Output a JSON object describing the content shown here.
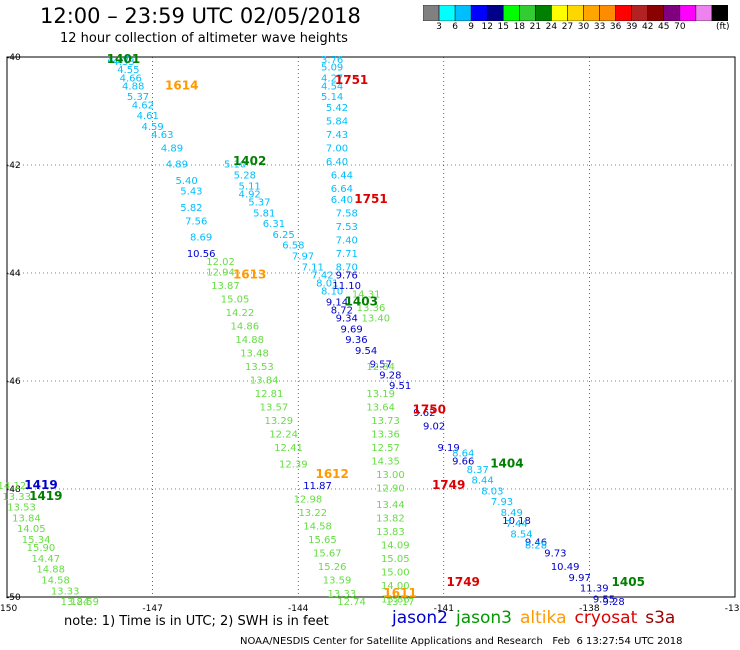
{
  "title": "12:00 – 23:59 UTC 02/05/2018",
  "subtitle": "12 hour collection of altimeter wave heights",
  "color_scale": {
    "colors": [
      "#808080",
      "#00ffff",
      "#00bfff",
      "#0000ff",
      "#00008b",
      "#00ff00",
      "#32cd32",
      "#008000",
      "#ffff00",
      "#ffd700",
      "#ffa500",
      "#ff8c00",
      "#ff0000",
      "#b22222",
      "#8b0000",
      "#800080",
      "#ff00ff",
      "#ee82ee",
      "#000000"
    ],
    "labels": [
      "3",
      "6",
      "9",
      "12",
      "15",
      "18",
      "21",
      "24",
      "27",
      "30",
      "33",
      "36",
      "39",
      "42",
      "45",
      "70"
    ],
    "unit": "(ft)"
  },
  "note": "note: 1) Time is in UTC; 2) SWH is in feet",
  "legend": [
    {
      "name": "jason2",
      "color": "#0000cc"
    },
    {
      "name": "jason3",
      "color": "#009900"
    },
    {
      "name": "altika",
      "color": "#ff9900"
    },
    {
      "name": "cryosat",
      "color": "#dd0000"
    },
    {
      "name": "s3a",
      "color": "#990000"
    }
  ],
  "credit": "NOAA/NESDIS Center for Satellite Applications and Research   Feb  6 13:27:54 UTC 2018",
  "chart_data": {
    "type": "scatter",
    "xlim": [
      -150,
      -135
    ],
    "ylim": [
      -50,
      -40
    ],
    "x_ticks": [
      "-150",
      "-147",
      "-144",
      "-141",
      "-138",
      "-135"
    ],
    "y_ticks": [
      "-40",
      "-42",
      "-44",
      "-46",
      "-48",
      "-50"
    ],
    "grid": true,
    "track_labels": [
      {
        "text": "1401",
        "x": -147.6,
        "y": -40.0,
        "color": "#008000"
      },
      {
        "text": "1614",
        "x": -146.4,
        "y": -40.6,
        "color": "#ff9900"
      },
      {
        "text": "1751",
        "x": -142.9,
        "y": -40.5,
        "color": "#dd0000"
      },
      {
        "text": "1402",
        "x": -145.0,
        "y": -42.0,
        "color": "#008000"
      },
      {
        "text": "1751",
        "x": -142.5,
        "y": -42.7,
        "color": "#dd0000"
      },
      {
        "text": "1613",
        "x": -145.0,
        "y": -44.1,
        "color": "#ff9900"
      },
      {
        "text": "1403",
        "x": -142.7,
        "y": -44.6,
        "color": "#008000"
      },
      {
        "text": "1750",
        "x": -141.3,
        "y": -46.6,
        "color": "#dd0000"
      },
      {
        "text": "1404",
        "x": -139.7,
        "y": -47.6,
        "color": "#008000"
      },
      {
        "text": "1612",
        "x": -143.3,
        "y": -47.8,
        "color": "#ff9900"
      },
      {
        "text": "1749",
        "x": -140.9,
        "y": -48.0,
        "color": "#dd0000"
      },
      {
        "text": "1419",
        "x": -149.3,
        "y": -48.0,
        "color": "#0000cc"
      },
      {
        "text": "1419",
        "x": -149.2,
        "y": -48.2,
        "color": "#008000"
      },
      {
        "text": "1405",
        "x": -137.2,
        "y": -49.8,
        "color": "#008000"
      },
      {
        "text": "1749",
        "x": -140.6,
        "y": -49.8,
        "color": "#dd0000"
      },
      {
        "text": "1611",
        "x": -141.9,
        "y": -50.0,
        "color": "#ff9900"
      }
    ],
    "series": [
      {
        "name": "jason3 1401-1402",
        "color": "#00bfff",
        "points": [
          {
            "x": -147.7,
            "y": -40.05,
            "v": "4.27"
          },
          {
            "x": -147.6,
            "y": -40.15,
            "v": "4.33"
          },
          {
            "x": -147.5,
            "y": -40.3,
            "v": "4.55"
          },
          {
            "x": -147.45,
            "y": -40.45,
            "v": "4.66"
          },
          {
            "x": -147.4,
            "y": -40.6,
            "v": "4.88"
          },
          {
            "x": -147.3,
            "y": -40.8,
            "v": "5.37"
          },
          {
            "x": -147.2,
            "y": -40.95,
            "v": "4.62"
          },
          {
            "x": -147.1,
            "y": -41.15,
            "v": "4.61"
          },
          {
            "x": -147.0,
            "y": -41.35,
            "v": "4.59"
          },
          {
            "x": -146.8,
            "y": -41.5,
            "v": "4.63"
          },
          {
            "x": -146.6,
            "y": -41.75,
            "v": "4.89"
          },
          {
            "x": -146.5,
            "y": -42.05,
            "v": "4.89"
          },
          {
            "x": -146.3,
            "y": -42.35,
            "v": "5.40"
          },
          {
            "x": -146.2,
            "y": -42.55,
            "v": "5.43"
          },
          {
            "x": -146.2,
            "y": -42.85,
            "v": "5.82"
          },
          {
            "x": -146.1,
            "y": -43.1,
            "v": "7.56"
          },
          {
            "x": -146.0,
            "y": -43.4,
            "v": "8.69"
          }
        ]
      },
      {
        "name": "jason3 1402-1403",
        "color": "#00bfff",
        "points": [
          {
            "x": -145.3,
            "y": -42.05,
            "v": "5.10"
          },
          {
            "x": -145.1,
            "y": -42.25,
            "v": "5.28"
          },
          {
            "x": -145.0,
            "y": -42.45,
            "v": "5.11"
          },
          {
            "x": -145.0,
            "y": -42.6,
            "v": "4.92"
          },
          {
            "x": -144.8,
            "y": -42.75,
            "v": "5.37"
          },
          {
            "x": -144.7,
            "y": -42.95,
            "v": "5.81"
          },
          {
            "x": -144.5,
            "y": -43.15,
            "v": "6.31"
          },
          {
            "x": -144.3,
            "y": -43.35,
            "v": "6.25"
          },
          {
            "x": -144.1,
            "y": -43.55,
            "v": "6.58"
          },
          {
            "x": -143.9,
            "y": -43.75,
            "v": "7.97"
          },
          {
            "x": -143.7,
            "y": -43.95,
            "v": "7.11"
          },
          {
            "x": -143.5,
            "y": -44.1,
            "v": "7.42"
          },
          {
            "x": -143.4,
            "y": -44.25,
            "v": "8.01"
          },
          {
            "x": -143.3,
            "y": -44.4,
            "v": "8.10"
          }
        ]
      },
      {
        "name": "cryosat 1751",
        "color": "#00bfff",
        "points": [
          {
            "x": -143.3,
            "y": -40.05,
            "v": "3.76"
          },
          {
            "x": -143.3,
            "y": -40.25,
            "v": "5.09"
          },
          {
            "x": -143.3,
            "y": -40.45,
            "v": "4.27"
          },
          {
            "x": -143.3,
            "y": -40.6,
            "v": "4.54"
          },
          {
            "x": -143.3,
            "y": -40.8,
            "v": "5.14"
          },
          {
            "x": -143.2,
            "y": -41.0,
            "v": "5.42"
          },
          {
            "x": -143.2,
            "y": -41.25,
            "v": "5.84"
          },
          {
            "x": -143.2,
            "y": -41.5,
            "v": "7.43"
          },
          {
            "x": -143.2,
            "y": -41.75,
            "v": "7.00"
          },
          {
            "x": -143.2,
            "y": -42.0,
            "v": "6.40"
          },
          {
            "x": -143.1,
            "y": -42.25,
            "v": "6.44"
          },
          {
            "x": -143.1,
            "y": -42.5,
            "v": "6.64"
          },
          {
            "x": -143.1,
            "y": -42.7,
            "v": "6.40"
          },
          {
            "x": -143.0,
            "y": -42.95,
            "v": "7.58"
          },
          {
            "x": -143.0,
            "y": -43.2,
            "v": "7.53"
          },
          {
            "x": -143.0,
            "y": -43.45,
            "v": "7.40"
          },
          {
            "x": -143.0,
            "y": -43.7,
            "v": "7.71"
          },
          {
            "x": -143.0,
            "y": -43.95,
            "v": "8.70"
          }
        ]
      },
      {
        "name": "jason2 1403-1405",
        "color": "#0000cc",
        "points": [
          {
            "x": -143.0,
            "y": -44.1,
            "v": "9.76"
          },
          {
            "x": -143.0,
            "y": -44.3,
            "v": "11.10"
          },
          {
            "x": -143.2,
            "y": -44.6,
            "v": "9.14"
          },
          {
            "x": -143.0,
            "y": -44.9,
            "v": "9.34"
          },
          {
            "x": -142.9,
            "y": -45.1,
            "v": "9.69"
          },
          {
            "x": -142.8,
            "y": -45.3,
            "v": "9.36"
          },
          {
            "x": -142.6,
            "y": -45.5,
            "v": "9.54"
          },
          {
            "x": -142.3,
            "y": -45.75,
            "v": "9.57"
          },
          {
            "x": -142.1,
            "y": -45.95,
            "v": "9.28"
          },
          {
            "x": -141.9,
            "y": -46.15,
            "v": "9.51"
          },
          {
            "x": -141.4,
            "y": -46.65,
            "v": "9.62"
          },
          {
            "x": -141.2,
            "y": -46.9,
            "v": "9.02"
          },
          {
            "x": -140.9,
            "y": -47.3,
            "v": "9.19"
          },
          {
            "x": -140.6,
            "y": -47.55,
            "v": "9.66"
          },
          {
            "x": -139.5,
            "y": -48.65,
            "v": "10.18"
          },
          {
            "x": -139.1,
            "y": -49.05,
            "v": "9.46"
          },
          {
            "x": -138.7,
            "y": -49.25,
            "v": "9.73"
          },
          {
            "x": -138.5,
            "y": -49.5,
            "v": "10.49"
          },
          {
            "x": -138.2,
            "y": -49.7,
            "v": "9.97"
          },
          {
            "x": -137.9,
            "y": -49.9,
            "v": "11.39"
          },
          {
            "x": -137.7,
            "y": -50.1,
            "v": "9.55"
          },
          {
            "x": -137.5,
            "y": -50.25,
            "v": "9.28"
          },
          {
            "x": -146.0,
            "y": -43.7,
            "v": "10.56"
          },
          {
            "x": -143.6,
            "y": -48.0,
            "v": "11.87"
          },
          {
            "x": -143.1,
            "y": -44.75,
            "v": "8.72"
          }
        ]
      },
      {
        "name": "jason2 1404 tail",
        "color": "#00bfff",
        "points": [
          {
            "x": -140.6,
            "y": -47.4,
            "v": "8.64"
          },
          {
            "x": -140.3,
            "y": -47.7,
            "v": "8.37"
          },
          {
            "x": -140.2,
            "y": -47.9,
            "v": "8.44"
          },
          {
            "x": -140.0,
            "y": -48.1,
            "v": "8.03"
          },
          {
            "x": -139.8,
            "y": -48.3,
            "v": "7.93"
          },
          {
            "x": -139.6,
            "y": -48.5,
            "v": "8.49"
          },
          {
            "x": -139.5,
            "y": -48.7,
            "v": "7.44"
          },
          {
            "x": -139.4,
            "y": -48.9,
            "v": "8.54"
          },
          {
            "x": -139.1,
            "y": -49.1,
            "v": "8.28"
          }
        ]
      },
      {
        "name": "altika 1613-1611",
        "color": "#66dd44",
        "points": [
          {
            "x": -145.6,
            "y": -43.85,
            "v": "12.02"
          },
          {
            "x": -145.6,
            "y": -44.05,
            "v": "12.94"
          },
          {
            "x": -145.5,
            "y": -44.3,
            "v": "13.87"
          },
          {
            "x": -145.3,
            "y": -44.55,
            "v": "15.05"
          },
          {
            "x": -145.2,
            "y": -44.8,
            "v": "14.22"
          },
          {
            "x": -145.1,
            "y": -45.05,
            "v": "14.86"
          },
          {
            "x": -145.0,
            "y": -45.3,
            "v": "14.88"
          },
          {
            "x": -144.9,
            "y": -45.55,
            "v": "13.48"
          },
          {
            "x": -144.8,
            "y": -45.8,
            "v": "13.53"
          },
          {
            "x": -144.7,
            "y": -46.05,
            "v": "13.84"
          },
          {
            "x": -144.6,
            "y": -46.3,
            "v": "12.81"
          },
          {
            "x": -144.5,
            "y": -46.55,
            "v": "13.57"
          },
          {
            "x": -144.4,
            "y": -46.8,
            "v": "13.29"
          },
          {
            "x": -144.3,
            "y": -47.05,
            "v": "12.24"
          },
          {
            "x": -144.2,
            "y": -47.3,
            "v": "12.41"
          },
          {
            "x": -144.1,
            "y": -47.6,
            "v": "12.39"
          },
          {
            "x": -143.8,
            "y": -48.25,
            "v": "12.98"
          },
          {
            "x": -143.7,
            "y": -48.5,
            "v": "13.22"
          },
          {
            "x": -143.6,
            "y": -48.75,
            "v": "14.58"
          },
          {
            "x": -143.5,
            "y": -49.0,
            "v": "15.65"
          },
          {
            "x": -143.4,
            "y": -49.25,
            "v": "15.67"
          },
          {
            "x": -143.3,
            "y": -49.5,
            "v": "15.26"
          },
          {
            "x": -143.2,
            "y": -49.75,
            "v": "13.59"
          },
          {
            "x": -143.1,
            "y": -50.0,
            "v": "13.33"
          },
          {
            "x": -142.9,
            "y": -50.25,
            "v": "12.74"
          }
        ]
      },
      {
        "name": "cryosat 1750-1749",
        "color": "#66dd44",
        "points": [
          {
            "x": -142.6,
            "y": -44.45,
            "v": "14.31"
          },
          {
            "x": -142.5,
            "y": -44.7,
            "v": "13.36"
          },
          {
            "x": -142.4,
            "y": -44.9,
            "v": "13.40"
          },
          {
            "x": -142.3,
            "y": -45.8,
            "v": "12.84"
          },
          {
            "x": -142.3,
            "y": -46.3,
            "v": "13.19"
          },
          {
            "x": -142.3,
            "y": -46.55,
            "v": "13.64"
          },
          {
            "x": -142.2,
            "y": -46.8,
            "v": "13.73"
          },
          {
            "x": -142.2,
            "y": -47.05,
            "v": "13.36"
          },
          {
            "x": -142.2,
            "y": -47.3,
            "v": "12.57"
          },
          {
            "x": -142.2,
            "y": -47.55,
            "v": "14.35"
          },
          {
            "x": -142.1,
            "y": -47.8,
            "v": "13.00"
          },
          {
            "x": -142.1,
            "y": -48.05,
            "v": "12.90"
          },
          {
            "x": -142.1,
            "y": -48.35,
            "v": "13.44"
          },
          {
            "x": -142.1,
            "y": -48.6,
            "v": "13.82"
          },
          {
            "x": -142.1,
            "y": -48.85,
            "v": "13.83"
          },
          {
            "x": -142.0,
            "y": -49.1,
            "v": "14.09"
          },
          {
            "x": -142.0,
            "y": -49.35,
            "v": "15.05"
          },
          {
            "x": -142.0,
            "y": -49.6,
            "v": "15.00"
          },
          {
            "x": -142.0,
            "y": -49.85,
            "v": "14.00"
          },
          {
            "x": -142.0,
            "y": -50.1,
            "v": "13.86"
          },
          {
            "x": -141.9,
            "y": -50.35,
            "v": "13.17"
          }
        ]
      },
      {
        "name": "jason3 1419",
        "color": "#66dd44",
        "points": [
          {
            "x": -149.9,
            "y": -48.0,
            "v": "14.12"
          },
          {
            "x": -149.8,
            "y": -48.2,
            "v": "13.33"
          },
          {
            "x": -149.7,
            "y": -48.4,
            "v": "13.53"
          },
          {
            "x": -149.6,
            "y": -48.6,
            "v": "13.84"
          },
          {
            "x": -149.5,
            "y": -48.8,
            "v": "14.05"
          },
          {
            "x": -149.4,
            "y": -49.0,
            "v": "15.34"
          },
          {
            "x": -149.3,
            "y": -49.15,
            "v": "15.90"
          },
          {
            "x": -149.2,
            "y": -49.35,
            "v": "14.47"
          },
          {
            "x": -149.1,
            "y": -49.55,
            "v": "14.88"
          },
          {
            "x": -149.0,
            "y": -49.75,
            "v": "14.58"
          },
          {
            "x": -148.8,
            "y": -49.95,
            "v": "13.33"
          },
          {
            "x": -148.6,
            "y": -50.15,
            "v": "13.84"
          },
          {
            "x": -148.4,
            "y": -50.35,
            "v": "12.59"
          }
        ]
      }
    ]
  }
}
